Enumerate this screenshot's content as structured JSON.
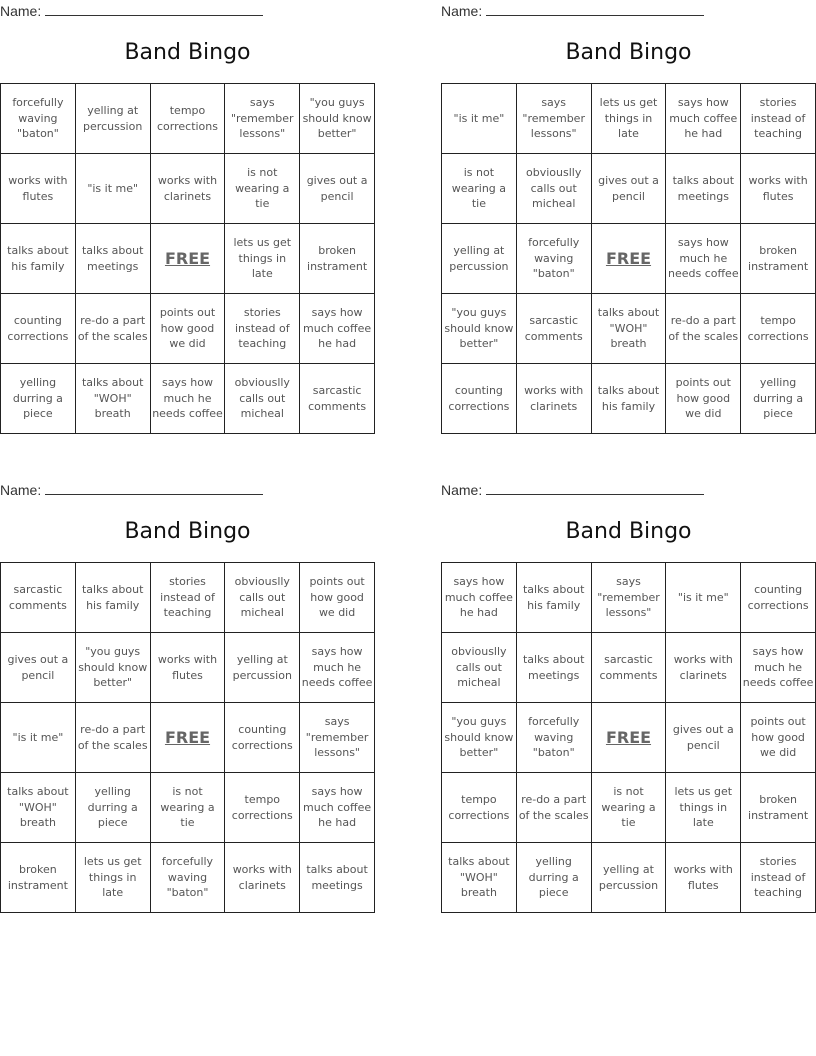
{
  "name_label": "Name:",
  "cards": [
    {
      "title": "Band Bingo",
      "cells": [
        "forcefully waving \"baton\"",
        "yelling at percussion",
        "tempo corrections",
        "says \"remember lessons\"",
        "\"you guys should know better\"",
        "works with flutes",
        "\"is it me\"",
        "works with clarinets",
        "is not wearing a tie",
        "gives out a pencil",
        "talks about his family",
        "talks about meetings",
        "FREE",
        "lets us get things in late",
        "broken instrament",
        "counting corrections",
        "re-do a part of the scales",
        "points out how good we did",
        "stories instead of teaching",
        "says how much coffee he had",
        "yelling durring a piece",
        "talks about \"WOH\" breath",
        "says how much he needs coffee",
        "obviouslly calls out micheal",
        "sarcastic comments"
      ]
    },
    {
      "title": "Band Bingo",
      "cells": [
        "\"is it me\"",
        "says \"remember lessons\"",
        "lets us get things in late",
        "says how much coffee he had",
        "stories instead of teaching",
        "is not wearing a tie",
        "obviouslly calls out micheal",
        "gives out a pencil",
        "talks about meetings",
        "works with flutes",
        "yelling at percussion",
        "forcefully waving \"baton\"",
        "FREE",
        "says how much he needs coffee",
        "broken instrament",
        "\"you guys should know better\"",
        "sarcastic comments",
        "talks about \"WOH\" breath",
        "re-do a part of the scales",
        "tempo corrections",
        "counting corrections",
        "works with clarinets",
        "talks about his family",
        "points out how good we did",
        "yelling durring a piece"
      ]
    },
    {
      "title": "Band Bingo",
      "cells": [
        "sarcastic comments",
        "talks about his family",
        "stories instead of teaching",
        "obviouslly calls out micheal",
        "points out how good we did",
        "gives out a pencil",
        "\"you guys should know better\"",
        "works with flutes",
        "yelling at percussion",
        "says how much he needs coffee",
        "\"is it me\"",
        "re-do a part of the scales",
        "FREE",
        "counting corrections",
        "says \"remember lessons\"",
        "talks about \"WOH\" breath",
        "yelling durring a piece",
        "is not wearing a tie",
        "tempo corrections",
        "says how much coffee he had",
        "broken instrament",
        "lets us get things in late",
        "forcefully waving \"baton\"",
        "works with clarinets",
        "talks about meetings"
      ]
    },
    {
      "title": "Band Bingo",
      "cells": [
        "says how much coffee he had",
        "talks about his family",
        "says \"remember lessons\"",
        "\"is it me\"",
        "counting corrections",
        "obviouslly calls out micheal",
        "talks about meetings",
        "sarcastic comments",
        "works with clarinets",
        "says how much he needs coffee",
        "\"you guys should know better\"",
        "forcefully waving \"baton\"",
        "FREE",
        "gives out a pencil",
        "points out how good we did",
        "tempo corrections",
        "re-do a part of the scales",
        "is not wearing a tie",
        "lets us get things in late",
        "broken instrament",
        "talks about \"WOH\" breath",
        "yelling durring a piece",
        "yelling at percussion",
        "works with flutes",
        "stories instead of teaching"
      ]
    }
  ]
}
